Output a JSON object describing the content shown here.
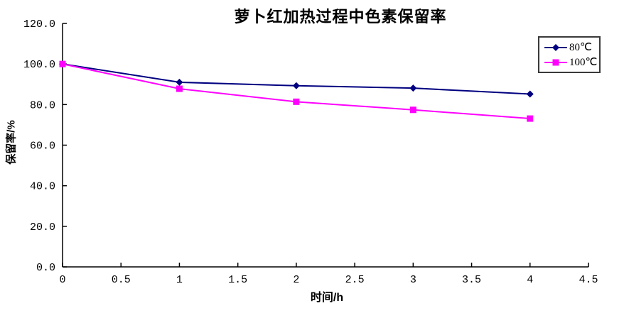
{
  "page": {
    "background": "#ffffff"
  },
  "chart": {
    "title": "萝卜红加热过程中色素保留率",
    "legend_border_color": "#3a3a3a",
    "axis_color": "#000000"
  },
  "chart_data": {
    "type": "line",
    "title": "萝卜红加热过程中色素保留率",
    "xlabel": "时间/h",
    "ylabel": "保留率/%",
    "x": [
      0,
      1,
      2,
      3,
      4
    ],
    "series": [
      {
        "name": "80℃",
        "color": "#000080",
        "marker": "diamond",
        "values": [
          100,
          91.0,
          89.3,
          88.1,
          85.2
        ]
      },
      {
        "name": "100℃",
        "color": "#ff00ff",
        "marker": "square",
        "values": [
          100,
          87.8,
          81.4,
          77.4,
          73.1
        ]
      }
    ],
    "xlim": [
      0,
      4.5
    ],
    "ylim": [
      0,
      120
    ],
    "x_ticks": [
      0,
      0.5,
      1,
      1.5,
      2,
      2.5,
      3,
      3.5,
      4,
      4.5
    ],
    "x_tick_labels": [
      "0",
      "0.5",
      "1",
      "1.5",
      "2",
      "2.5",
      "3",
      "3.5",
      "4",
      "4.5"
    ],
    "y_ticks": [
      0,
      20,
      40,
      60,
      80,
      100,
      120
    ],
    "y_tick_labels": [
      "0.0",
      "20.0",
      "40.0",
      "60.0",
      "80.0",
      "100.0",
      "120.0"
    ],
    "grid": false,
    "legend_position": "top-right"
  }
}
